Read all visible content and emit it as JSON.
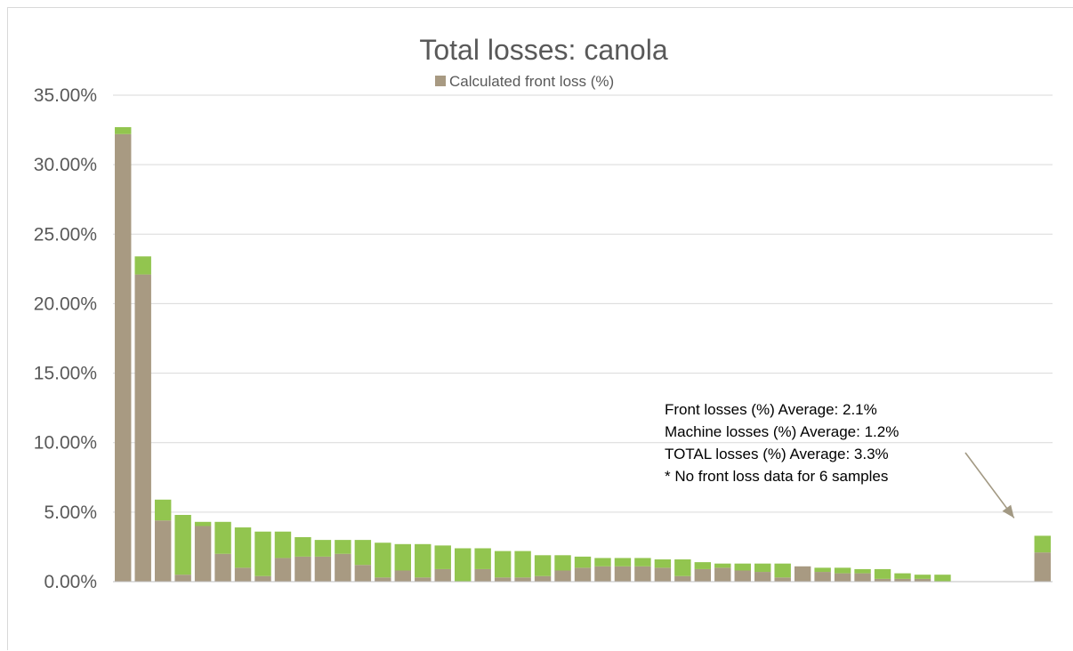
{
  "chart_data": {
    "type": "bar",
    "stacked": true,
    "title": "Total losses: canola",
    "legend": {
      "placement": "top",
      "entries": [
        "Calculated front loss (%)"
      ]
    },
    "xlabel": "",
    "ylabel": "",
    "ylim": [
      0,
      35
    ],
    "y_ticks": [
      0,
      5,
      10,
      15,
      20,
      25,
      30,
      35
    ],
    "y_tick_labels": [
      "0.00%",
      "5.00%",
      "10.00%",
      "15.00%",
      "20.00%",
      "25.00%",
      "30.00%",
      "35.00%"
    ],
    "grid": true,
    "bar_count": 47,
    "colors": {
      "front": "#a89a82",
      "machine": "#92c54f",
      "grid": "#d9d9d9",
      "axis": "#bfbfbf",
      "arrow": "#a29983"
    },
    "series": [
      {
        "name": "Calculated front loss (%)",
        "values": [
          32.2,
          22.1,
          4.4,
          0.5,
          4.0,
          2.0,
          1.0,
          0.4,
          1.7,
          1.8,
          1.8,
          2.0,
          1.2,
          0.3,
          0.8,
          0.3,
          0.9,
          0,
          0.9,
          0.3,
          0.3,
          0.4,
          0.8,
          1.0,
          1.1,
          1.1,
          1.1,
          1.0,
          0.4,
          0.9,
          1.0,
          0.8,
          0.7,
          0.3,
          1.1,
          0.7,
          0.6,
          0.6,
          0.2,
          0.2,
          0.2,
          0,
          0,
          0,
          0,
          0,
          2.1
        ]
      },
      {
        "values": [
          0.5,
          1.3,
          1.5,
          4.3,
          0.3,
          2.3,
          2.9,
          3.2,
          1.9,
          1.4,
          1.2,
          1.0,
          1.8,
          2.5,
          1.9,
          2.4,
          1.7,
          2.4,
          1.5,
          1.9,
          1.9,
          1.5,
          1.1,
          0.8,
          0.6,
          0.6,
          0.6,
          0.6,
          1.2,
          0.5,
          0.3,
          0.5,
          0.6,
          1.0,
          0,
          0.3,
          0.4,
          0.3,
          0.7,
          0.4,
          0.3,
          0.5,
          0,
          0,
          0,
          0,
          1.2
        ]
      }
    ],
    "annotation": {
      "lines": [
        "Front losses (%) Average: 2.1%",
        "Machine losses (%) Average: 1.2%",
        "TOTAL losses (%) Average: 3.3%",
        "* No front loss data for 6 samples"
      ],
      "points_to_bar": 47
    }
  }
}
